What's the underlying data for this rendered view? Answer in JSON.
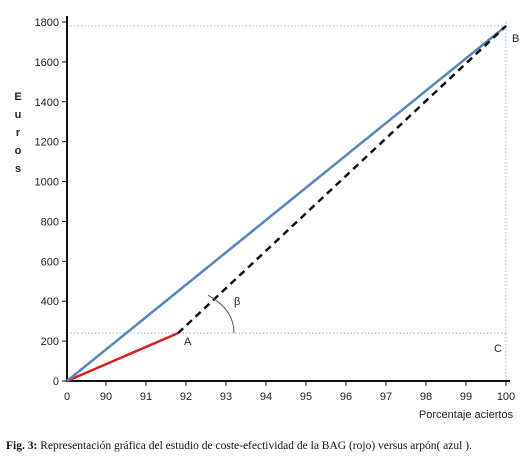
{
  "chart_data": {
    "type": "line",
    "xlabel": "Porcentaje aciertos",
    "ylabel": "Euros",
    "x_ticks": [
      {
        "value": 0,
        "label": "0"
      },
      {
        "value": 90,
        "label": "90"
      },
      {
        "value": 91,
        "label": "91"
      },
      {
        "value": 92,
        "label": "92"
      },
      {
        "value": 93,
        "label": "93"
      },
      {
        "value": 94,
        "label": "94"
      },
      {
        "value": 95,
        "label": "95"
      },
      {
        "value": 96,
        "label": "96"
      },
      {
        "value": 97,
        "label": "97"
      },
      {
        "value": 98,
        "label": "98"
      },
      {
        "value": 99,
        "label": "99"
      },
      {
        "value": 100,
        "label": "100"
      }
    ],
    "y_ticks": [
      0,
      200,
      400,
      600,
      800,
      1000,
      1200,
      1400,
      1600,
      1800
    ],
    "ylim": [
      0,
      1800
    ],
    "series": [
      {
        "color": "#d42020",
        "style": "solid",
        "points": [
          [
            0,
            0
          ],
          [
            91.8,
            240
          ]
        ]
      },
      {
        "color": "#5a86bf",
        "style": "solid",
        "points": [
          [
            0,
            0
          ],
          [
            100,
            1780
          ]
        ]
      },
      {
        "color": "#111111",
        "style": "dashed",
        "points": [
          [
            91.8,
            240
          ],
          [
            100,
            1780
          ]
        ]
      }
    ],
    "annotations": [
      {
        "text": "A",
        "x": 91.8,
        "y": 240
      },
      {
        "text": "B",
        "x": 100,
        "y": 1780
      },
      {
        "text": "C",
        "x": 100,
        "y": 240
      },
      {
        "text": "β",
        "x": 93.2,
        "y": 380
      }
    ],
    "reference_lines": [
      {
        "orientation": "horizontal",
        "y": 1780
      },
      {
        "orientation": "horizontal",
        "y": 240
      },
      {
        "orientation": "vertical",
        "x": 100
      }
    ]
  },
  "caption": {
    "prefix": "Fig. 3:",
    "text": " Representación gráfica del estudio de coste-efectividad de la BAG (rojo) versus arpón( azul )."
  }
}
